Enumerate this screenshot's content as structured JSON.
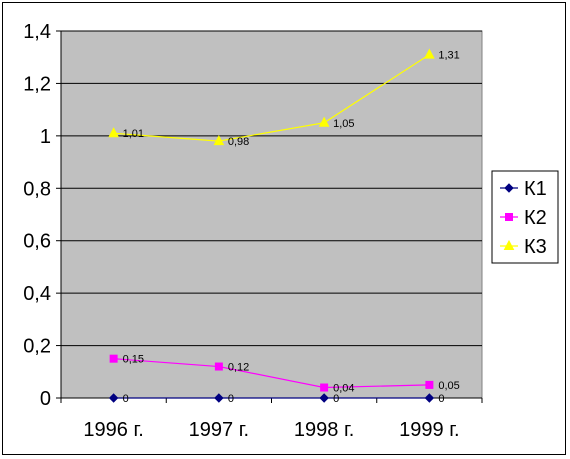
{
  "chart_data": {
    "type": "line",
    "categories": [
      "1996 г.",
      "1997 г.",
      "1998 г.",
      "1999 г."
    ],
    "series": [
      {
        "name": "К1",
        "values": [
          0,
          0,
          0,
          0
        ],
        "labels": [
          "0",
          "0",
          "0",
          "0"
        ],
        "color": "#000080",
        "marker": "diamond"
      },
      {
        "name": "К2",
        "values": [
          0.15,
          0.12,
          0.04,
          0.05
        ],
        "labels": [
          "0,15",
          "0,12",
          "0,04",
          "0,05"
        ],
        "color": "#FF00FF",
        "marker": "square"
      },
      {
        "name": "К3",
        "values": [
          1.01,
          0.98,
          1.05,
          1.31
        ],
        "labels": [
          "1,01",
          "0,98",
          "1,05",
          "1,31"
        ],
        "color": "#FFFF00",
        "marker": "triangle"
      }
    ],
    "y_ticks": [
      "0",
      "0,2",
      "0,4",
      "0,6",
      "0,8",
      "1",
      "1,2",
      "1,4"
    ],
    "y_tick_values": [
      0,
      0.2,
      0.4,
      0.6,
      0.8,
      1.0,
      1.2,
      1.4
    ],
    "ylim": [
      0,
      1.4
    ],
    "grid": true,
    "plot_background": "#C0C0C0",
    "legend_position": "right"
  }
}
